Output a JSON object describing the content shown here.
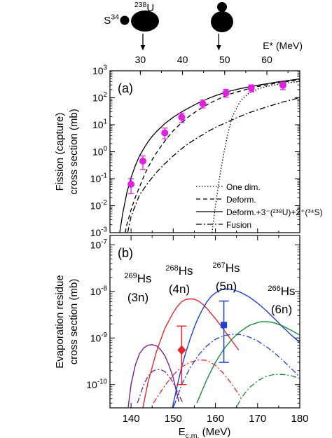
{
  "chart_data": [
    {
      "type": "line",
      "panel_label": "(a)",
      "top_axis": {
        "label": "E* (MeV)",
        "tick_labels": [
          "30",
          "40",
          "50",
          "60"
        ],
        "ticks": [
          30,
          40,
          50,
          60
        ]
      },
      "xlim": [
        135,
        180
      ],
      "ylim_log10": [
        -3,
        3
      ],
      "log_y": true,
      "ylabel_lines": [
        "Fission (capture)",
        "cross section  (mb)"
      ],
      "y_tick_labels": [
        "10^-3",
        "10^-2",
        "10^-1",
        "10^0",
        "10^1",
        "10^2",
        "10^3"
      ],
      "nuclei": {
        "projectile": "34S",
        "target": "238U"
      },
      "arrows_at_x": [
        142.8,
        160.8
      ],
      "experiment": {
        "color": "#e020e0",
        "points": [
          {
            "x": 140.0,
            "y": 0.062,
            "ylo": 0.028,
            "yhi": 0.1
          },
          {
            "x": 142.8,
            "y": 0.45,
            "ylo": 0.22,
            "yhi": 0.7
          },
          {
            "x": 148.0,
            "y": 5.0,
            "ylo": 3.0,
            "yhi": 7.5
          },
          {
            "x": 152.0,
            "y": 19.0,
            "ylo": 12.0,
            "yhi": 27.0
          },
          {
            "x": 157.0,
            "y": 60.0,
            "ylo": 42.0,
            "yhi": 82.0
          },
          {
            "x": 162.5,
            "y": 150.0,
            "ylo": 105.0,
            "yhi": 205.0
          },
          {
            "x": 168.5,
            "y": 230.0,
            "ylo": 165.0,
            "yhi": 300.0
          },
          {
            "x": 176.0,
            "y": 290.0,
            "ylo": 200.0,
            "yhi": 380.0
          }
        ]
      },
      "series": [
        {
          "name": "One dim.",
          "style": "dotted",
          "x": [
            159.2,
            160,
            161,
            162,
            163,
            164,
            166,
            168,
            170,
            172,
            175,
            178,
            180
          ],
          "y": [
            0.001,
            0.01,
            0.12,
            0.9,
            5.0,
            20,
            80,
            150,
            210,
            260,
            320,
            370,
            400
          ]
        },
        {
          "name": "Deform.",
          "style": "dashed",
          "x": [
            138.6,
            139,
            140,
            141,
            142,
            143,
            144,
            145,
            146,
            148,
            150,
            152,
            154,
            156,
            158,
            160,
            163,
            166,
            170,
            175,
            180
          ],
          "y": [
            0.001,
            0.002,
            0.007,
            0.02,
            0.05,
            0.12,
            0.26,
            0.5,
            0.9,
            2.5,
            6,
            12,
            22,
            36,
            55,
            80,
            130,
            180,
            260,
            360,
            460
          ]
        },
        {
          "name": "Deform.+3⁻(²³⁸U)+2⁺(³⁴S)",
          "style": "solid",
          "x": [
            137.3,
            138,
            139,
            140,
            141,
            142,
            143,
            144,
            145,
            146,
            148,
            150,
            152,
            154,
            156,
            158,
            160,
            163,
            166,
            170,
            175,
            180
          ],
          "y": [
            0.001,
            0.005,
            0.03,
            0.11,
            0.3,
            0.7,
            1.3,
            2.3,
            3.7,
            5.5,
            11,
            19,
            30,
            45,
            65,
            90,
            120,
            170,
            220,
            290,
            390,
            500
          ]
        },
        {
          "name": "Fusion",
          "style": "dashdot",
          "x": [
            139.2,
            140,
            141,
            142,
            144,
            146,
            148,
            150,
            152,
            154,
            156,
            158,
            160,
            162,
            165,
            168,
            172,
            176,
            180
          ],
          "y": [
            0.001,
            0.004,
            0.01,
            0.025,
            0.07,
            0.17,
            0.36,
            0.7,
            1.3,
            2.2,
            3.5,
            5.3,
            8.0,
            11,
            18,
            28,
            45,
            70,
            100
          ]
        }
      ],
      "legend_position": "bottom-right"
    },
    {
      "type": "line",
      "panel_label": "(b)",
      "xlabel": "E_c.m. (MeV)",
      "xlabel_main": "E",
      "xlabel_sub": "c.m.",
      "xlabel_unit": "(MeV)",
      "xlim": [
        135,
        180
      ],
      "x_tick_labels": [
        "140",
        "150",
        "160",
        "170",
        "180"
      ],
      "ylim_log10": [
        -10.5,
        -6.8
      ],
      "log_y": true,
      "ylabel_lines": [
        "Evaporation residue",
        "cross section  (mb)"
      ],
      "y_tick_labels": [
        "10^-10",
        "10^-9",
        "10^-8",
        "10^-7"
      ],
      "channels": [
        {
          "nucleus": "269Hs",
          "mass": "269",
          "element": "Hs",
          "channel": "(3n)",
          "color": "#7a1f8f",
          "solid": {
            "x": [
              139.3,
              140,
              141,
              142,
              143,
              144,
              145,
              146,
              147,
              148,
              149,
              150,
              151.3
            ],
            "y": [
              3e-11,
              1e-10,
              2.6e-10,
              4.6e-10,
              6.1e-10,
              7e-10,
              7.2e-10,
              6.8e-10,
              5.6e-10,
              4.2e-10,
              2.6e-10,
              1.4e-10,
              4.3e-11
            ]
          },
          "dashdot": {
            "x": [
              141.5,
              143,
              144,
              145,
              146,
              147,
              148,
              149,
              150,
              151,
              152.3
            ],
            "y": [
              4e-11,
              1e-10,
              1.5e-10,
              1.9e-10,
              2.1e-10,
              2.1e-10,
              1.9e-10,
              1.5e-10,
              1.1e-10,
              7e-11,
              4e-11
            ]
          }
        },
        {
          "nucleus": "268Hs",
          "mass": "268",
          "element": "Hs",
          "channel": "(4n)",
          "color": "#e8262a",
          "solid": {
            "x": [
              142.8,
              144,
              146,
              148,
              150,
              151,
              152,
              153,
              154,
              155,
              156,
              157,
              158,
              160,
              162,
              164,
              165.5
            ],
            "y": [
              3.2e-11,
              1.1e-10,
              5e-10,
              1.6e-09,
              3.5e-09,
              4.8e-09,
              6e-09,
              6.7e-09,
              6.9e-09,
              6.8e-09,
              6.2e-09,
              5.3e-09,
              4.3e-09,
              2.6e-09,
              1.5e-09,
              8.5e-10,
              5.5e-10
            ]
          },
          "dashdot": {
            "x": [
              145.3,
              146,
              148,
              150,
              152,
              154,
              156,
              158,
              160,
              162,
              164,
              166
            ],
            "y": [
              4e-11,
              5e-11,
              9.5e-11,
              1.6e-10,
              2.4e-10,
              3e-10,
              3.4e-10,
              3.3e-10,
              2.6e-10,
              1.7e-10,
              1e-10,
              5.3e-11
            ]
          }
        },
        {
          "nucleus": "267Hs",
          "mass": "267",
          "element": "Hs",
          "channel": "(5n)",
          "color": "#1c3fd6",
          "solid": {
            "x": [
              149.8,
              151,
              152,
              153,
              154,
              155,
              156,
              157,
              158,
              159,
              160,
              161,
              162,
              163,
              164,
              166,
              168,
              170,
              172,
              174,
              176,
              178,
              180
            ],
            "y": [
              2.5e-11,
              1e-10,
              2.4e-10,
              5e-10,
              9.5e-10,
              1.7e-09,
              2.8e-09,
              4.2e-09,
              6e-09,
              7.8e-09,
              9.3e-09,
              1.05e-08,
              1.12e-08,
              1.13e-08,
              1.1e-08,
              9.5e-09,
              7.6e-09,
              5.6e-09,
              3.9e-09,
              2.6e-09,
              1.7e-09,
              1.15e-09,
              8e-10
            ]
          },
          "dashdot": {
            "x": [
              150.2,
              152,
              154,
              156,
              158,
              160,
              162,
              164,
              166,
              168,
              170,
              172,
              174,
              176,
              178,
              180
            ],
            "y": [
              3.5e-11,
              1e-10,
              2.3e-10,
              4.3e-10,
              6.8e-10,
              9.4e-10,
              1.12e-09,
              1.2e-09,
              1.18e-09,
              1.05e-09,
              8.6e-10,
              6.6e-10,
              4.8e-10,
              3.3e-10,
              2.2e-10,
              1.45e-10
            ]
          }
        },
        {
          "nucleus": "266Hs",
          "mass": "266",
          "element": "Hs",
          "channel": "(6n)",
          "color": "#1d8a3c",
          "solid": {
            "x": [
              155.6,
              157,
              158,
              160,
              162,
              164,
              166,
              168,
              170,
              171,
              172,
              173,
              174,
              176,
              178,
              180
            ],
            "y": [
              4e-11,
              8e-11,
              1.3e-10,
              3e-10,
              5.8e-10,
              9.6e-10,
              1.4e-09,
              1.85e-09,
              2.15e-09,
              2.25e-09,
              2.25e-09,
              2.2e-09,
              2.1e-09,
              1.8e-09,
              1.45e-09,
              1.15e-09
            ]
          },
          "dashdot": {
            "x": [
              165.2,
              166,
              168,
              170,
              172,
              174,
              176,
              178,
              180
            ],
            "y": [
              3.5e-11,
              5e-11,
              8.5e-11,
              1.2e-10,
              1.5e-10,
              1.65e-10,
              1.65e-10,
              1.55e-10,
              1.35e-10
            ]
          }
        }
      ],
      "experiment": [
        {
          "label": "268Hs (4n)",
          "marker": "diamond",
          "color": "#e8262a",
          "x": 152.0,
          "y": 5.5e-10,
          "ylo": 1e-10,
          "yhi": 1.8e-09
        },
        {
          "label": "267Hs (5n)",
          "marker": "square",
          "color": "#1c3fd6",
          "x": 162.0,
          "y": 1.9e-09,
          "ylo": 3e-10,
          "yhi": 6.2e-09
        }
      ]
    }
  ]
}
